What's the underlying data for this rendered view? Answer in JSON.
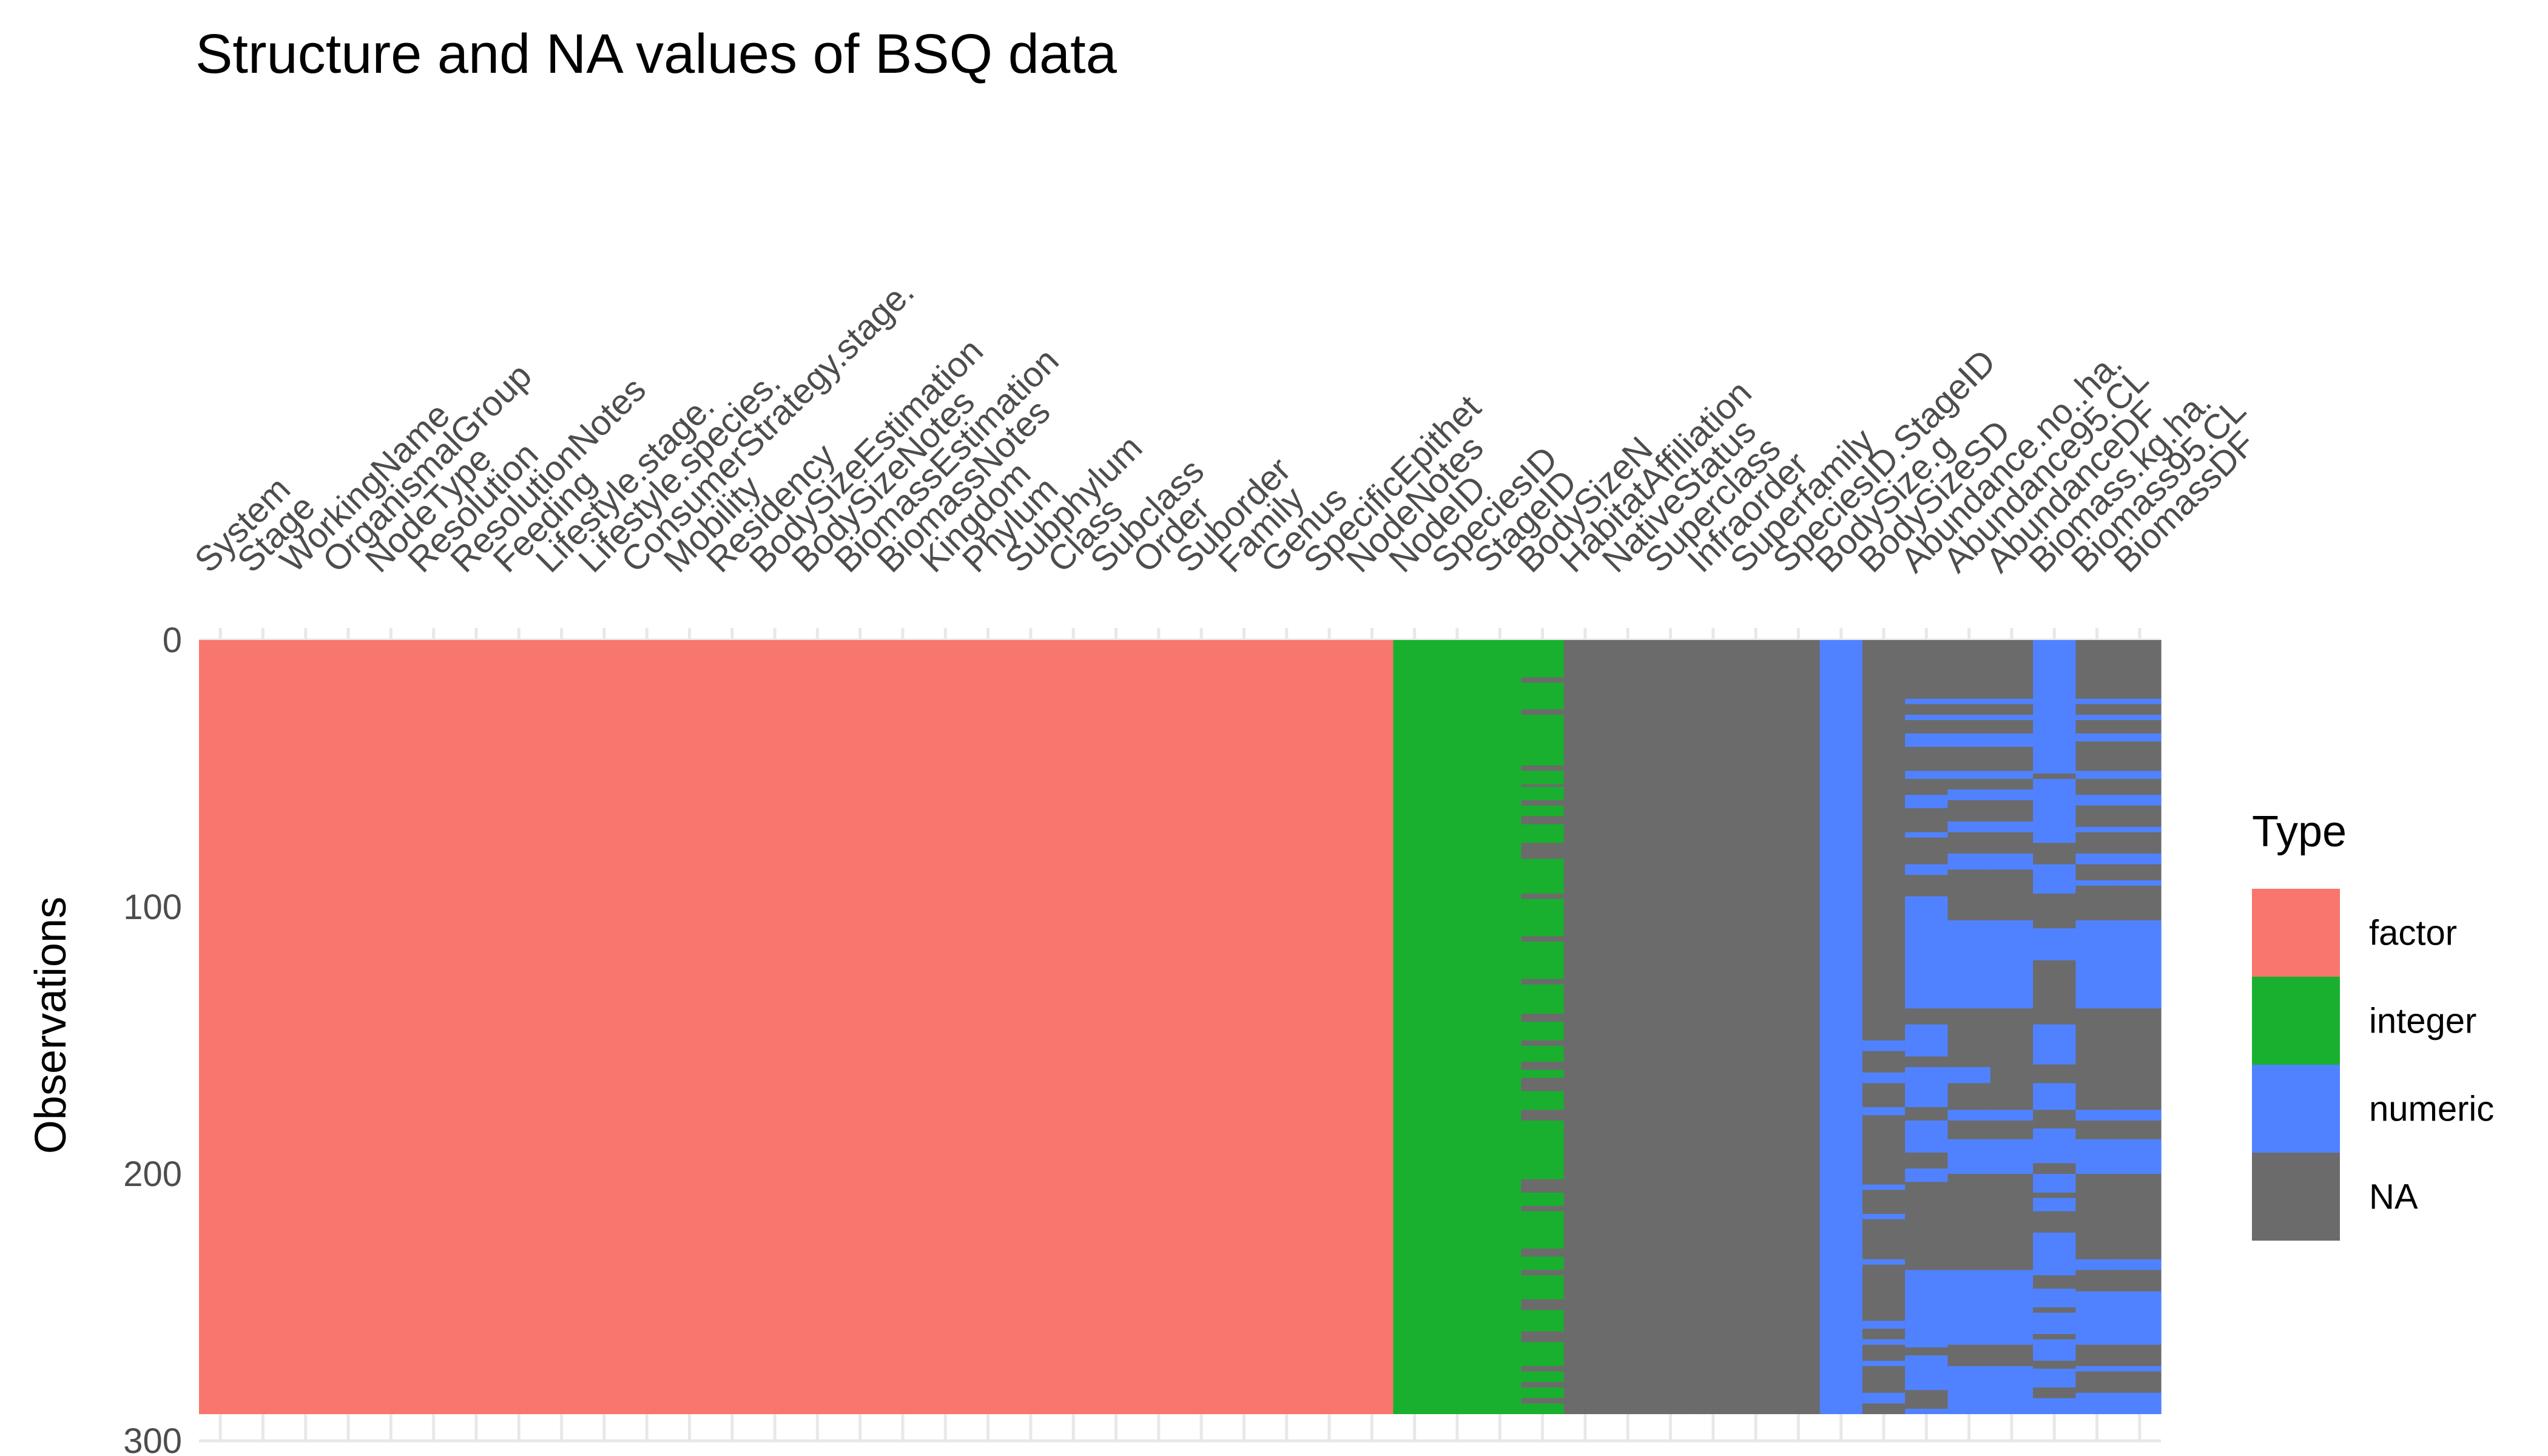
{
  "chart_data": {
    "type": "heatmap",
    "title": "Structure and NA values of BSQ data",
    "xlabel": "",
    "ylabel": "Observations",
    "ylim": [
      0,
      300
    ],
    "y_ticks": [
      0,
      100,
      200,
      300
    ],
    "n_observations": 290,
    "grid": true,
    "legend": {
      "title": "Type",
      "position": "right",
      "entries": [
        {
          "label": "factor",
          "color": "#F8766D"
        },
        {
          "label": "integer",
          "color": "#19B02F"
        },
        {
          "label": "numeric",
          "color": "#5082FF"
        },
        {
          "label": "NA",
          "color": "#6B6B6B"
        }
      ]
    },
    "columns": [
      {
        "name": "System",
        "type": "factor"
      },
      {
        "name": "Stage",
        "type": "factor"
      },
      {
        "name": "WorkingName",
        "type": "factor"
      },
      {
        "name": "OrganismalGroup",
        "type": "factor"
      },
      {
        "name": "NodeType",
        "type": "factor"
      },
      {
        "name": "Resolution",
        "type": "factor"
      },
      {
        "name": "ResolutionNotes",
        "type": "factor"
      },
      {
        "name": "Feeding",
        "type": "factor"
      },
      {
        "name": "Lifestyle.stage.",
        "type": "factor"
      },
      {
        "name": "Lifestyle.species.",
        "type": "factor"
      },
      {
        "name": "ConsumerStrategy.stage.",
        "type": "factor"
      },
      {
        "name": "Mobility",
        "type": "factor"
      },
      {
        "name": "Residency",
        "type": "factor"
      },
      {
        "name": "BodySizeEstimation",
        "type": "factor"
      },
      {
        "name": "BodySizeNotes",
        "type": "factor"
      },
      {
        "name": "BiomassEstimation",
        "type": "factor"
      },
      {
        "name": "BiomassNotes",
        "type": "factor"
      },
      {
        "name": "Kingdom",
        "type": "factor"
      },
      {
        "name": "Phylum",
        "type": "factor"
      },
      {
        "name": "Subphylum",
        "type": "factor"
      },
      {
        "name": "Class",
        "type": "factor"
      },
      {
        "name": "Subclass",
        "type": "factor"
      },
      {
        "name": "Order",
        "type": "factor"
      },
      {
        "name": "Suborder",
        "type": "factor"
      },
      {
        "name": "Family",
        "type": "factor"
      },
      {
        "name": "Genus",
        "type": "factor"
      },
      {
        "name": "SpecificEpithet",
        "type": "factor"
      },
      {
        "name": "NodeNotes",
        "type": "factor"
      },
      {
        "name": "NodeID",
        "type": "integer"
      },
      {
        "name": "SpeciesID",
        "type": "integer"
      },
      {
        "name": "StageID",
        "type": "integer"
      },
      {
        "name": "BodySizeN",
        "type": "integer",
        "na_runs": [
          [
            14,
            16
          ],
          [
            26,
            28
          ],
          [
            47,
            49
          ],
          [
            54,
            55
          ],
          [
            60,
            62
          ],
          [
            66,
            69
          ],
          [
            76,
            82
          ],
          [
            95,
            97
          ],
          [
            111,
            113
          ],
          [
            127,
            129
          ],
          [
            140,
            143
          ],
          [
            150,
            152
          ],
          [
            158,
            161
          ],
          [
            164,
            169
          ],
          [
            176,
            180
          ],
          [
            202,
            207
          ],
          [
            212,
            214
          ],
          [
            228,
            231
          ],
          [
            236,
            238
          ],
          [
            247,
            251
          ],
          [
            259,
            263
          ],
          [
            272,
            274
          ],
          [
            278,
            280
          ],
          [
            284,
            286
          ]
        ]
      },
      {
        "name": "HabitatAffiliation",
        "type": "NA"
      },
      {
        "name": "NativeStatus",
        "type": "NA"
      },
      {
        "name": "Superclass",
        "type": "NA"
      },
      {
        "name": "Infraorder",
        "type": "NA"
      },
      {
        "name": "Superfamily",
        "type": "NA"
      },
      {
        "name": "SpeciesID.StageID",
        "type": "NA"
      },
      {
        "name": "BodySize.g",
        "type": "numeric"
      },
      {
        "name": "BodySizeSD",
        "type": "NA",
        "value_runs": [
          [
            150,
            154
          ],
          [
            162,
            166
          ],
          [
            175,
            178
          ],
          [
            204,
            206
          ],
          [
            215,
            217
          ],
          [
            232,
            234
          ],
          [
            255,
            258
          ],
          [
            262,
            264
          ],
          [
            270,
            272
          ],
          [
            282,
            286
          ]
        ]
      },
      {
        "name": "Abundance.no..ha.",
        "type": "NA",
        "value_runs": [
          [
            22,
            24
          ],
          [
            28,
            30
          ],
          [
            35,
            40
          ],
          [
            49,
            52
          ],
          [
            58,
            63
          ],
          [
            72,
            74
          ],
          [
            84,
            88
          ],
          [
            96,
            290
          ]
        ],
        "na_runs": [
          [
            138,
            144
          ],
          [
            156,
            160
          ],
          [
            175,
            180
          ],
          [
            192,
            198
          ],
          [
            203,
            236
          ],
          [
            265,
            268
          ],
          [
            281,
            288
          ]
        ]
      },
      {
        "name": "Abundance95.CL",
        "type": "NA",
        "value_runs": [
          [
            22,
            24
          ],
          [
            28,
            30
          ],
          [
            35,
            40
          ],
          [
            49,
            52
          ],
          [
            56,
            60
          ],
          [
            68,
            72
          ],
          [
            80,
            86
          ],
          [
            105,
            138
          ],
          [
            160,
            166
          ],
          [
            176,
            180
          ],
          [
            187,
            200
          ],
          [
            236,
            264
          ],
          [
            272,
            290
          ]
        ],
        "na_runs": [
          [
            150,
            156
          ]
        ]
      },
      {
        "name": "AbundanceDF",
        "type": "NA",
        "value_runs": [
          [
            22,
            24
          ],
          [
            28,
            30
          ],
          [
            35,
            40
          ],
          [
            49,
            52
          ],
          [
            56,
            60
          ],
          [
            68,
            72
          ],
          [
            80,
            86
          ],
          [
            105,
            138
          ],
          [
            176,
            180
          ],
          [
            187,
            200
          ],
          [
            236,
            264
          ],
          [
            272,
            290
          ]
        ],
        "na_runs": [
          [
            150,
            156
          ]
        ]
      },
      {
        "name": "Biomass.kg.ha.",
        "type": "numeric",
        "na_runs": [
          [
            50,
            52
          ],
          [
            76,
            84
          ],
          [
            95,
            108
          ],
          [
            120,
            144
          ],
          [
            159,
            166
          ],
          [
            176,
            183
          ],
          [
            196,
            200
          ],
          [
            207,
            209
          ],
          [
            214,
            222
          ],
          [
            238,
            243
          ],
          [
            250,
            252
          ],
          [
            260,
            262
          ],
          [
            270,
            273
          ],
          [
            280,
            284
          ]
        ]
      },
      {
        "name": "Biomass95.CL",
        "type": "NA",
        "value_runs": [
          [
            22,
            24
          ],
          [
            28,
            30
          ],
          [
            35,
            38
          ],
          [
            49,
            52
          ],
          [
            58,
            62
          ],
          [
            70,
            72
          ],
          [
            80,
            84
          ],
          [
            90,
            92
          ],
          [
            105,
            138
          ],
          [
            176,
            180
          ],
          [
            187,
            200
          ],
          [
            232,
            236
          ],
          [
            244,
            264
          ],
          [
            272,
            274
          ],
          [
            282,
            290
          ]
        ]
      },
      {
        "name": "BiomassDF",
        "type": "NA",
        "value_runs": [
          [
            22,
            24
          ],
          [
            28,
            30
          ],
          [
            35,
            38
          ],
          [
            49,
            52
          ],
          [
            58,
            62
          ],
          [
            70,
            72
          ],
          [
            80,
            84
          ],
          [
            90,
            92
          ],
          [
            105,
            138
          ],
          [
            176,
            180
          ],
          [
            187,
            200
          ],
          [
            232,
            236
          ],
          [
            244,
            264
          ],
          [
            272,
            274
          ],
          [
            282,
            290
          ]
        ]
      }
    ]
  }
}
